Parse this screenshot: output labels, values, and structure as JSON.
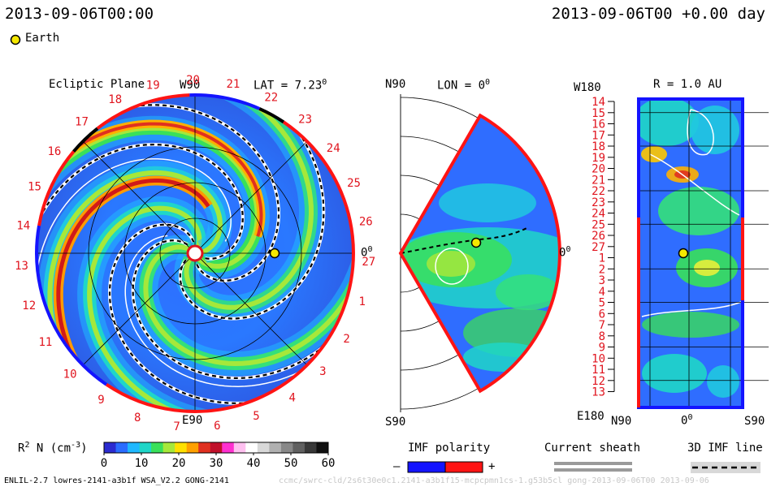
{
  "header": {
    "date_left": "2013-09-06T00:00",
    "date_right": "2013-09-06T00 +0.00 day"
  },
  "legend": {
    "earth_label": "Earth",
    "earth_color": "#f5e800"
  },
  "panels": {
    "ecliptic": {
      "title": "Ecliptic Plane",
      "lat_label": "LAT = 7.23",
      "lat_sup": "0",
      "top_label": "W90",
      "bottom_label": "E90",
      "right_label": "0",
      "right_sup": "0",
      "carrington_labels": [
        "19",
        "20",
        "21",
        "22",
        "23",
        "24",
        "25",
        "26",
        "27",
        "1",
        "2",
        "3",
        "4",
        "5",
        "6",
        "7",
        "8",
        "9",
        "10",
        "11",
        "12",
        "13",
        "14",
        "15",
        "16",
        "17",
        "18"
      ]
    },
    "meridional": {
      "top_label": "N90",
      "lon_label": "LON = 0",
      "lon_sup": "0",
      "bottom_label": "S90",
      "right_label": "0",
      "right_sup": "0"
    },
    "synoptic": {
      "top_left_label": "W180",
      "r_label": "R = 1.0 AU",
      "bottom_left_label": "E180",
      "left_axis_label": "N90",
      "mid_axis_label": "0",
      "mid_axis_sup": "0",
      "right_axis_label": "S90",
      "carrington_labels": [
        "14",
        "15",
        "16",
        "17",
        "18",
        "19",
        "20",
        "21",
        "22",
        "23",
        "24",
        "25",
        "26",
        "27",
        "1",
        "2",
        "3",
        "4",
        "5",
        "6",
        "7",
        "8",
        "9",
        "10",
        "11",
        "12",
        "13"
      ]
    }
  },
  "colorbar": {
    "label_main": "R",
    "label_sup": "2",
    "label_rest": " N (cm",
    "label_exp": "-3",
    "label_close": ")",
    "ticks": [
      "0",
      "10",
      "20",
      "30",
      "40",
      "50",
      "60"
    ]
  },
  "imf": {
    "title": "IMF polarity",
    "minus": "–",
    "plus": "+",
    "neg_color": "#1414ff",
    "pos_color": "#ff1414"
  },
  "current_sheath": {
    "title": "Current sheath"
  },
  "imf_line": {
    "title": "3D IMF line"
  },
  "footer": {
    "left": "ENLIL-2.7 lowres-2141-a3b1f WSA_V2.2 GONG-2141",
    "right": "ccmc/swrc-cld/2s6t30e0c1.2141-a3b1f15-mcpcpmn1cs-1.g53b5cl gong-2013-09-06T00    2013-09-06"
  },
  "chart_data": {
    "type": "heatmap",
    "quantity": "R2 N (cm-3)",
    "colorbar_range": [
      0,
      60
    ],
    "colorbar_ticks": [
      0,
      10,
      20,
      30,
      40,
      50,
      60
    ],
    "earth": {
      "ecliptic_lon_deg": 0,
      "lat_deg": 7.23,
      "r_au": 1.0
    },
    "panels": [
      "Ecliptic Plane",
      "LON = 0 meridional plane",
      "R = 1.0 AU synoptic map"
    ]
  }
}
